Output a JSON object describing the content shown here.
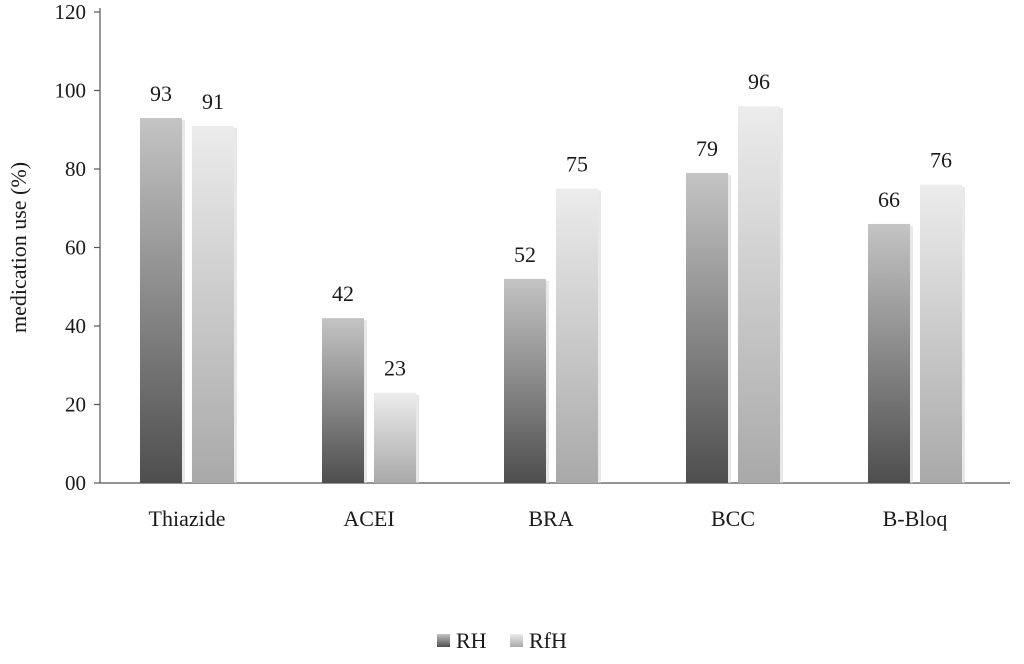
{
  "chart_data": {
    "type": "bar",
    "ylabel": "medication use (%)",
    "ylim": [
      0,
      120
    ],
    "yticks": [
      {
        "value": 0,
        "label": "00"
      },
      {
        "value": 20,
        "label": "20"
      },
      {
        "value": 40,
        "label": "40"
      },
      {
        "value": 60,
        "label": "60"
      },
      {
        "value": 80,
        "label": "80"
      },
      {
        "value": 100,
        "label": "100"
      },
      {
        "value": 120,
        "label": "120"
      }
    ],
    "categories": [
      "Thiazide",
      "ACEI",
      "BRA",
      "BCC",
      "B-Bloq"
    ],
    "series": [
      {
        "name": "RH",
        "values": [
          93,
          42,
          52,
          79,
          66
        ],
        "color_top": "#c4c4c4",
        "color_bottom": "#4e4e4e"
      },
      {
        "name": "RfH",
        "values": [
          91,
          23,
          75,
          96,
          76
        ],
        "color_top": "#ececec",
        "color_bottom": "#a9a9a9"
      }
    ],
    "data_labels": true,
    "grid": false,
    "legend_position": "bottom"
  }
}
